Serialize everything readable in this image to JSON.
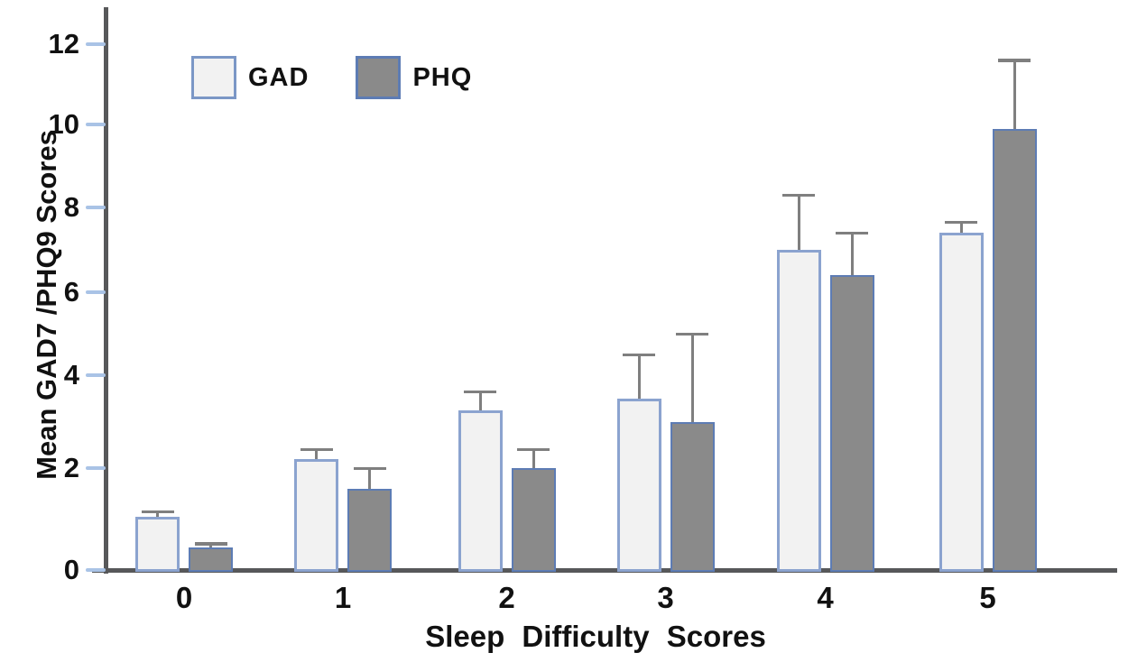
{
  "chart_data": {
    "type": "bar",
    "title": "",
    "xlabel": "Sleep Difficulty Scores",
    "ylabel": "Mean GAD7 /PHQ9 Scores",
    "categories": [
      "0",
      "1",
      "2",
      "3",
      "4",
      "5"
    ],
    "series": [
      {
        "name": "GAD",
        "values": [
          1.05,
          2.2,
          3.25,
          3.5,
          7.0,
          7.4
        ],
        "error_up": [
          0.1,
          0.2,
          0.4,
          1.0,
          1.3,
          0.25
        ],
        "fill": "#f2f2f2",
        "border": "#8ba3cf"
      },
      {
        "name": "PHQ",
        "values": [
          0.45,
          1.6,
          2.0,
          3.0,
          6.4,
          9.9
        ],
        "error_up": [
          0.07,
          0.4,
          0.4,
          2.0,
          1.0,
          1.7
        ],
        "fill": "#8a8a8a",
        "border": "#5d7cb4"
      }
    ],
    "ylim": [
      0,
      12
    ],
    "yticks": [
      0,
      2,
      4,
      6,
      8,
      10,
      12
    ],
    "grid": false,
    "legend": {
      "position": "top-left-inside",
      "entries": [
        "GAD",
        "PHQ"
      ]
    },
    "colors": {
      "axis": "#57585a",
      "tick_dash": "#a9c3e6",
      "error_bar": "#7f7f7f",
      "text": "#111111",
      "background": "#ffffff"
    }
  }
}
